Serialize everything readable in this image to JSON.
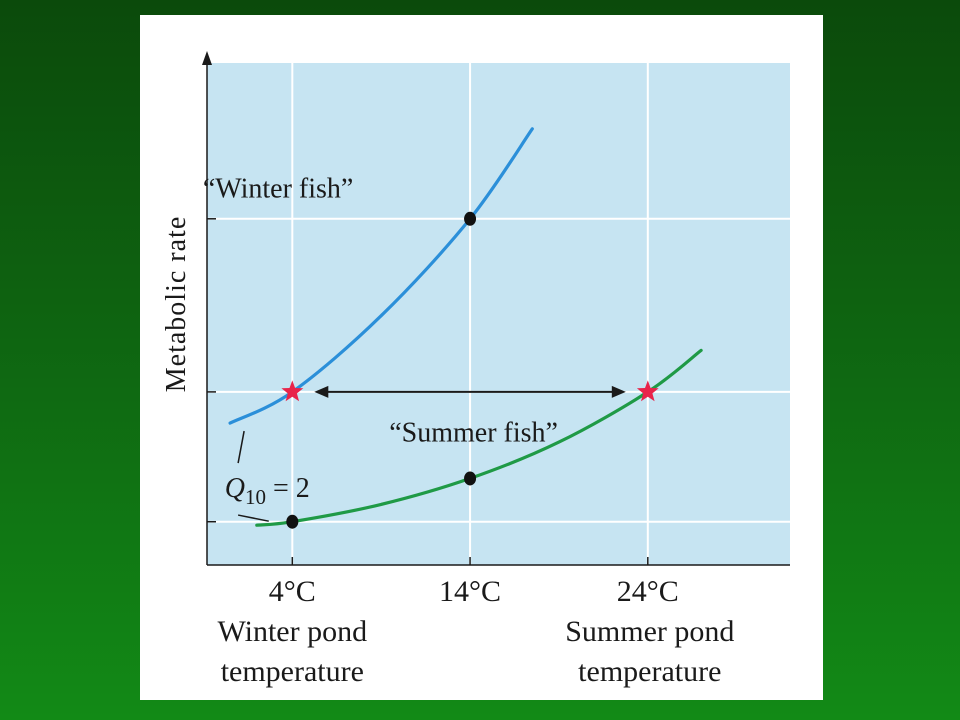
{
  "chart_data": {
    "type": "line",
    "ylabel": "Metabolic rate",
    "xlabel": "",
    "x_ticks": [
      "4°C",
      "14°C",
      "24°C"
    ],
    "x_tick_values": [
      4,
      14,
      24
    ],
    "x_categories": [
      "Winter pond temperature",
      "Summer pond temperature"
    ],
    "x_category_lines": [
      [
        "Winter pond",
        "temperature"
      ],
      [
        "Summer pond",
        "temperature"
      ]
    ],
    "xlim": [
      -0.8,
      32
    ],
    "ylim": [
      0,
      1.45
    ],
    "y_gridlines": [
      0.125,
      0.5,
      1.0
    ],
    "grid": true,
    "series": [
      {
        "name": "“Winter fish”",
        "color": "#2b8fd9",
        "x": [
          0.5,
          4,
          9,
          14,
          17.5
        ],
        "y": [
          0.41,
          0.5,
          0.72,
          1.0,
          1.26
        ],
        "markers": [
          {
            "x": 14,
            "y": 1.0,
            "symbol": "dot"
          }
        ]
      },
      {
        "name": "“Summer fish”",
        "color": "#1f9a46",
        "x": [
          2,
          4,
          9,
          14,
          19,
          24,
          27
        ],
        "y": [
          0.115,
          0.125,
          0.175,
          0.25,
          0.355,
          0.5,
          0.62
        ],
        "markers": [
          {
            "x": 4,
            "y": 0.125,
            "symbol": "dot"
          },
          {
            "x": 14,
            "y": 0.25,
            "symbol": "dot"
          }
        ]
      }
    ],
    "highlight_points": [
      {
        "x": 4,
        "y": 0.5,
        "symbol": "star",
        "color": "#e8244a"
      },
      {
        "x": 24,
        "y": 0.5,
        "symbol": "star",
        "color": "#e8244a"
      }
    ],
    "annotations": {
      "arrow": {
        "from_x": 4,
        "to_x": 24,
        "y": 0.5,
        "style": "double-headed"
      },
      "q10_label": {
        "prefix": "Q",
        "subscript": "10",
        "suffix": " = 2"
      }
    }
  },
  "colors": {
    "plot_background": "#c6e4f2",
    "grid": "#ffffff",
    "axis": "#1a1a1a",
    "star": "#e8244a"
  }
}
